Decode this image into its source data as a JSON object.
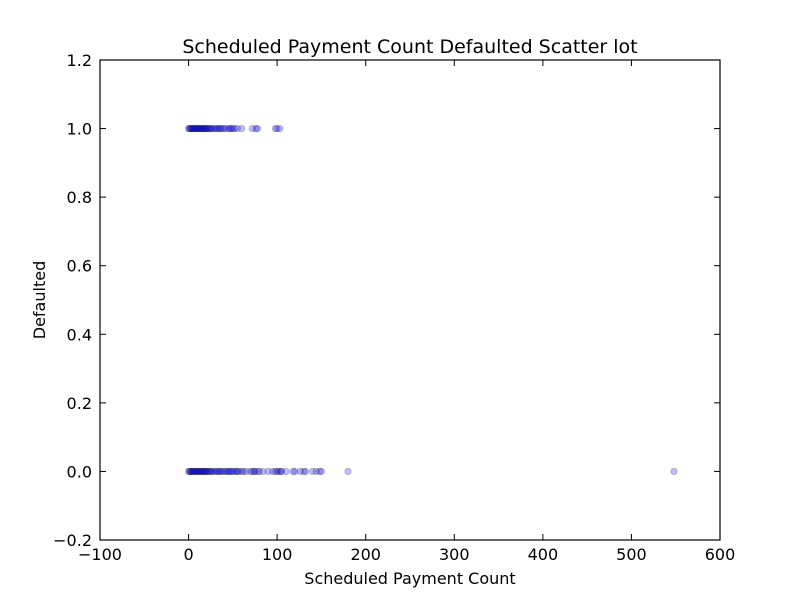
{
  "chart_data": {
    "type": "scatter",
    "title": "Scheduled Payment Count Defaulted Scatter lot",
    "xlabel": "Scheduled Payment Count",
    "ylabel": "Defaulted",
    "xlim": [
      -100,
      600
    ],
    "ylim": [
      -0.2,
      1.2
    ],
    "x_ticks": [
      -100,
      0,
      100,
      200,
      300,
      400,
      500,
      600
    ],
    "y_ticks": [
      -0.2,
      0.0,
      0.2,
      0.4,
      0.6,
      0.8,
      1.0,
      1.2
    ],
    "x_tick_labels": [
      "−100",
      "0",
      "100",
      "200",
      "300",
      "400",
      "500",
      "600"
    ],
    "y_tick_labels": [
      "−0.2",
      "0.0",
      "0.2",
      "0.4",
      "0.6",
      "0.8",
      "1.0",
      "1.2"
    ],
    "grid": false,
    "marker_color": "#0000ff",
    "marker_alpha": 0.25,
    "series": [
      {
        "points": [
          [
            0,
            1
          ],
          [
            1,
            1
          ],
          [
            2,
            1
          ],
          [
            3,
            1
          ],
          [
            4,
            1
          ],
          [
            5,
            1
          ],
          [
            6,
            1
          ],
          [
            7,
            1
          ],
          [
            8,
            1
          ],
          [
            9,
            1
          ],
          [
            10,
            1
          ],
          [
            11,
            1
          ],
          [
            12,
            1
          ],
          [
            13,
            1
          ],
          [
            14,
            1
          ],
          [
            15,
            1
          ],
          [
            16,
            1
          ],
          [
            17,
            1
          ],
          [
            18,
            1
          ],
          [
            19,
            1
          ],
          [
            20,
            1
          ],
          [
            21,
            1
          ],
          [
            22,
            1
          ],
          [
            24,
            1
          ],
          [
            25,
            1
          ],
          [
            26,
            1
          ],
          [
            28,
            1
          ],
          [
            30,
            1
          ],
          [
            32,
            1
          ],
          [
            33,
            1
          ],
          [
            35,
            1
          ],
          [
            36,
            1
          ],
          [
            38,
            1
          ],
          [
            40,
            1
          ],
          [
            42,
            1
          ],
          [
            45,
            1
          ],
          [
            47,
            1
          ],
          [
            48,
            1
          ],
          [
            50,
            1
          ],
          [
            52,
            1
          ],
          [
            55,
            1
          ],
          [
            60,
            1
          ],
          [
            72,
            1
          ],
          [
            76,
            1
          ],
          [
            78,
            1
          ],
          [
            98,
            1
          ],
          [
            100,
            1
          ],
          [
            103,
            1
          ],
          [
            0,
            0
          ],
          [
            1,
            0
          ],
          [
            2,
            0
          ],
          [
            3,
            0
          ],
          [
            4,
            0
          ],
          [
            5,
            0
          ],
          [
            6,
            0
          ],
          [
            7,
            0
          ],
          [
            8,
            0
          ],
          [
            9,
            0
          ],
          [
            10,
            0
          ],
          [
            11,
            0
          ],
          [
            12,
            0
          ],
          [
            13,
            0
          ],
          [
            14,
            0
          ],
          [
            15,
            0
          ],
          [
            16,
            0
          ],
          [
            17,
            0
          ],
          [
            18,
            0
          ],
          [
            19,
            0
          ],
          [
            20,
            0
          ],
          [
            21,
            0
          ],
          [
            22,
            0
          ],
          [
            24,
            0
          ],
          [
            25,
            0
          ],
          [
            26,
            0
          ],
          [
            28,
            0
          ],
          [
            30,
            0
          ],
          [
            32,
            0
          ],
          [
            33,
            0
          ],
          [
            35,
            0
          ],
          [
            36,
            0
          ],
          [
            38,
            0
          ],
          [
            40,
            0
          ],
          [
            42,
            0
          ],
          [
            44,
            0
          ],
          [
            45,
            0
          ],
          [
            47,
            0
          ],
          [
            48,
            0
          ],
          [
            50,
            0
          ],
          [
            52,
            0
          ],
          [
            54,
            0
          ],
          [
            55,
            0
          ],
          [
            57,
            0
          ],
          [
            60,
            0
          ],
          [
            62,
            0
          ],
          [
            65,
            0
          ],
          [
            70,
            0
          ],
          [
            72,
            0
          ],
          [
            74,
            0
          ],
          [
            75,
            0
          ],
          [
            78,
            0
          ],
          [
            80,
            0
          ],
          [
            84,
            0
          ],
          [
            90,
            0
          ],
          [
            95,
            0
          ],
          [
            98,
            0
          ],
          [
            100,
            0
          ],
          [
            102,
            0
          ],
          [
            104,
            0
          ],
          [
            105,
            0
          ],
          [
            110,
            0
          ],
          [
            118,
            0
          ],
          [
            120,
            0
          ],
          [
            126,
            0
          ],
          [
            130,
            0
          ],
          [
            132,
            0
          ],
          [
            140,
            0
          ],
          [
            144,
            0
          ],
          [
            148,
            0
          ],
          [
            150,
            0
          ],
          [
            180,
            0
          ],
          [
            548,
            0
          ]
        ]
      }
    ]
  }
}
